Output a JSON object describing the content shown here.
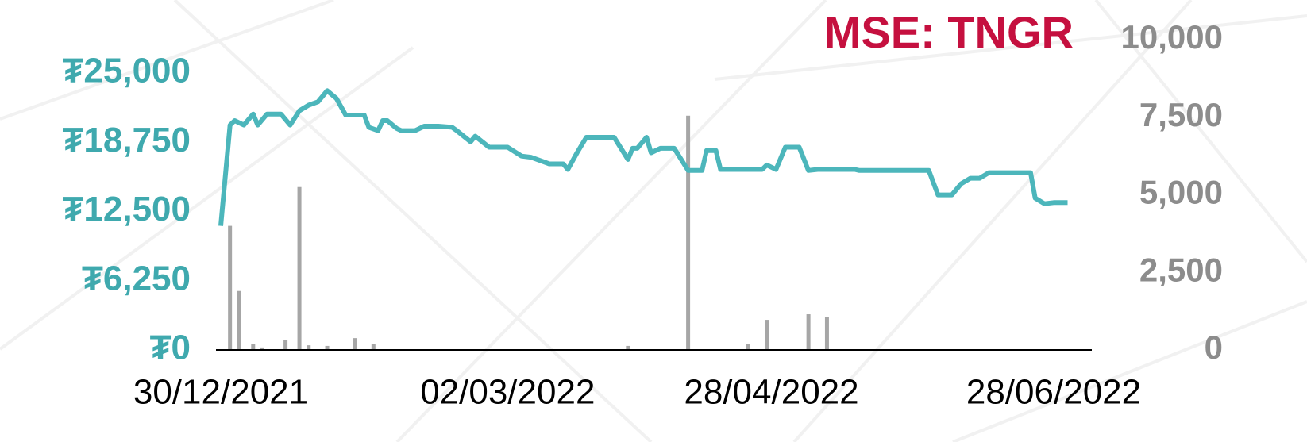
{
  "chart_data": {
    "type": "line",
    "title": "MSE: TNGR",
    "xticks": [
      "30/12/2021",
      "02/03/2022",
      "28/04/2022",
      "28/06/2022"
    ],
    "ylim": [
      0,
      25000
    ],
    "yticks": [
      {
        "value": 0,
        "label": "₮0"
      },
      {
        "value": 6250,
        "label": "₮6,250"
      },
      {
        "value": 12500,
        "label": "₮12,500"
      },
      {
        "value": 18750,
        "label": "₮18,750"
      },
      {
        "value": 25000,
        "label": "₮25,000"
      }
    ],
    "y2lim": [
      0,
      10000
    ],
    "y2ticks": [
      0,
      {
        "value": 2500,
        "label": "2,500"
      },
      {
        "value": 5000,
        "label": "5,000"
      },
      {
        "value": 7500,
        "label": "7,500"
      },
      {
        "value": 10000,
        "label": "10,000"
      }
    ],
    "grid": false,
    "series": [
      {
        "type": "line",
        "color": "#4cb6bb",
        "x": [
          "30/12/2021",
          "01/01/2022",
          "02/01/2022",
          "04/01/2022",
          "06/01/2022",
          "07/01/2022",
          "09/01/2022",
          "12/01/2022",
          "14/01/2022",
          "16/01/2022",
          "18/01/2022",
          "20/01/2022",
          "22/01/2022",
          "24/01/2022",
          "26/01/2022",
          "30/01/2022",
          "31/01/2022",
          "02/02/2022",
          "03/02/2022",
          "04/02/2022",
          "06/02/2022",
          "07/02/2022",
          "10/02/2022",
          "12/02/2022",
          "15/02/2022",
          "18/02/2022",
          "19/02/2022",
          "22/02/2022",
          "23/02/2022",
          "26/02/2022",
          "02/03/2022",
          "05/03/2022",
          "07/03/2022",
          "11/03/2022",
          "14/03/2022",
          "15/03/2022",
          "17/03/2022",
          "19/03/2022",
          "25/03/2022",
          "28/03/2022",
          "29/03/2022",
          "30/03/2022",
          "01/04/2022",
          "02/04/2022",
          "04/04/2022",
          "07/04/2022",
          "10/04/2022",
          "13/04/2022",
          "14/04/2022",
          "16/04/2022",
          "17/04/2022",
          "26/04/2022",
          "27/04/2022",
          "29/04/2022",
          "01/05/2022",
          "04/05/2022",
          "06/05/2022",
          "08/05/2022",
          "16/05/2022",
          "17/05/2022",
          "01/06/2022",
          "03/06/2022",
          "06/06/2022",
          "08/06/2022",
          "10/06/2022",
          "12/06/2022",
          "14/06/2022",
          "23/06/2022",
          "24/06/2022",
          "26/06/2022",
          "28/06/2022",
          "01/07/2022"
        ],
        "values": [
          11200,
          20300,
          20700,
          20300,
          21300,
          20300,
          21300,
          21300,
          20300,
          21600,
          22100,
          22400,
          23400,
          22700,
          21200,
          21200,
          20100,
          19800,
          20700,
          20700,
          20000,
          19800,
          19800,
          20200,
          20200,
          20100,
          19800,
          18800,
          19300,
          18300,
          18300,
          17500,
          17400,
          16800,
          16800,
          16300,
          17800,
          19200,
          19200,
          17200,
          18200,
          18200,
          19200,
          17800,
          18200,
          18200,
          16200,
          16200,
          18000,
          18000,
          16300,
          16300,
          16700,
          16300,
          18300,
          18300,
          16200,
          16300,
          16300,
          16200,
          16200,
          14000,
          14000,
          15000,
          15500,
          15500,
          16000,
          16000,
          13700,
          13200,
          13300,
          13300
        ]
      },
      {
        "type": "bar",
        "axis": "y2",
        "color": "#a6a6a6",
        "x": [
          "01/01/2022",
          "03/01/2022",
          "06/01/2022",
          "08/01/2022",
          "13/01/2022",
          "16/01/2022",
          "18/01/2022",
          "22/01/2022",
          "28/01/2022",
          "01/02/2022",
          "28/03/2022",
          "10/04/2022",
          "23/04/2022",
          "27/04/2022",
          "06/05/2022",
          "10/05/2022"
        ],
        "values": [
          4000,
          1900,
          180,
          80,
          330,
          5250,
          150,
          130,
          380,
          180,
          130,
          7550,
          180,
          970,
          1150,
          1050
        ]
      }
    ]
  }
}
